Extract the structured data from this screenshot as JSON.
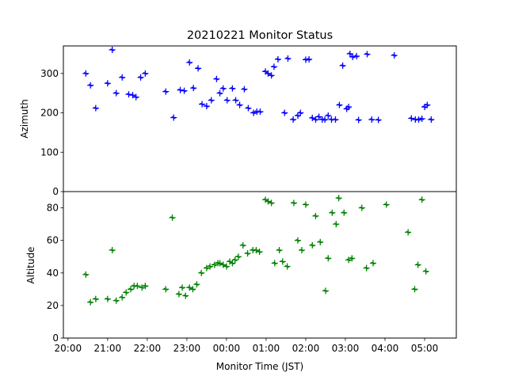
{
  "chart_data": {
    "type": "scatter",
    "title": "20210221 Monitor Status",
    "xlabel": "Monitor Time (JST)",
    "x_ticks": [
      "20:00",
      "21:00",
      "22:00",
      "23:00",
      "00:00",
      "01:00",
      "02:00",
      "03:00",
      "04:00",
      "05:00"
    ],
    "panels": [
      {
        "ylabel": "Azimuth",
        "ylim": [
          0,
          370
        ],
        "y_ticks": [
          0,
          100,
          200,
          300
        ],
        "color": "#0000ff",
        "series": [
          {
            "points": [
              [
                "20:27",
                300
              ],
              [
                "20:34",
                270
              ],
              [
                "20:42",
                212
              ],
              [
                "21:00",
                275
              ],
              [
                "21:07",
                360
              ],
              [
                "21:13",
                250
              ],
              [
                "21:22",
                290
              ],
              [
                "21:32",
                247
              ],
              [
                "21:38",
                245
              ],
              [
                "21:43",
                240
              ],
              [
                "21:50",
                290
              ],
              [
                "21:57",
                300
              ],
              [
                "22:28",
                254
              ],
              [
                "22:40",
                188
              ],
              [
                "22:50",
                258
              ],
              [
                "22:56",
                256
              ],
              [
                "23:04",
                328
              ],
              [
                "23:10",
                263
              ],
              [
                "23:17",
                313
              ],
              [
                "23:23",
                222
              ],
              [
                "23:30",
                217
              ],
              [
                "23:37",
                232
              ],
              [
                "23:45",
                286
              ],
              [
                "23:50",
                250
              ],
              [
                "23:55",
                262
              ],
              [
                "00:01",
                232
              ],
              [
                "00:09",
                262
              ],
              [
                "00:14",
                232
              ],
              [
                "00:20",
                220
              ],
              [
                "00:27",
                260
              ],
              [
                "00:33",
                212
              ],
              [
                "00:41",
                200
              ],
              [
                "00:46",
                203
              ],
              [
                "00:51",
                203
              ],
              [
                "00:59",
                305
              ],
              [
                "01:03",
                300
              ],
              [
                "01:08",
                295
              ],
              [
                "01:12",
                317
              ],
              [
                "01:18",
                336
              ],
              [
                "01:28",
                200
              ],
              [
                "01:33",
                338
              ],
              [
                "01:41",
                183
              ],
              [
                "01:48",
                193
              ],
              [
                "01:52",
                200
              ],
              [
                "02:00",
                335
              ],
              [
                "02:05",
                336
              ],
              [
                "02:10",
                187
              ],
              [
                "02:15",
                183
              ],
              [
                "02:20",
                190
              ],
              [
                "02:25",
                183
              ],
              [
                "02:29",
                183
              ],
              [
                "02:34",
                193
              ],
              [
                "02:39",
                183
              ],
              [
                "02:45",
                183
              ],
              [
                "02:51",
                220
              ],
              [
                "02:56",
                320
              ],
              [
                "03:02",
                210
              ],
              [
                "03:05",
                215
              ],
              [
                "03:07",
                350
              ],
              [
                "03:11",
                342
              ],
              [
                "03:17",
                344
              ],
              [
                "03:20",
                182
              ],
              [
                "03:33",
                349
              ],
              [
                "03:40",
                183
              ],
              [
                "03:50",
                182
              ],
              [
                "04:14",
                346
              ],
              [
                "04:40",
                186
              ],
              [
                "04:46",
                183
              ],
              [
                "04:51",
                183
              ],
              [
                "04:56",
                185
              ],
              [
                "05:00",
                215
              ],
              [
                "05:04",
                220
              ],
              [
                "05:10",
                183
              ]
            ]
          }
        ]
      },
      {
        "ylabel": "Altitude",
        "ylim": [
          0,
          90
        ],
        "y_ticks": [
          0,
          20,
          40,
          60,
          80
        ],
        "color": "#008000",
        "series": [
          {
            "points": [
              [
                "20:27",
                39
              ],
              [
                "20:34",
                22
              ],
              [
                "20:42",
                24
              ],
              [
                "21:00",
                24
              ],
              [
                "21:07",
                54
              ],
              [
                "21:13",
                23
              ],
              [
                "21:22",
                25
              ],
              [
                "21:28",
                28
              ],
              [
                "21:35",
                30
              ],
              [
                "21:40",
                32
              ],
              [
                "21:45",
                32
              ],
              [
                "21:52",
                31
              ],
              [
                "21:57",
                32
              ],
              [
                "22:28",
                30
              ],
              [
                "22:38",
                74
              ],
              [
                "22:48",
                27
              ],
              [
                "22:53",
                31
              ],
              [
                "22:58",
                26
              ],
              [
                "23:04",
                31
              ],
              [
                "23:09",
                30
              ],
              [
                "23:15",
                33
              ],
              [
                "23:22",
                40
              ],
              [
                "23:30",
                43
              ],
              [
                "23:35",
                44
              ],
              [
                "23:42",
                45
              ],
              [
                "23:47",
                46
              ],
              [
                "23:50",
                46
              ],
              [
                "23:55",
                45
              ],
              [
                "00:00",
                44
              ],
              [
                "00:05",
                47
              ],
              [
                "00:09",
                46
              ],
              [
                "00:13",
                48
              ],
              [
                "00:18",
                50
              ],
              [
                "00:25",
                57
              ],
              [
                "00:32",
                52
              ],
              [
                "00:40",
                54
              ],
              [
                "00:45",
                54
              ],
              [
                "00:50",
                53
              ],
              [
                "00:59",
                85
              ],
              [
                "01:03",
                84
              ],
              [
                "01:08",
                83
              ],
              [
                "01:13",
                46
              ],
              [
                "01:20",
                54
              ],
              [
                "01:25",
                47
              ],
              [
                "01:32",
                44
              ],
              [
                "01:42",
                83
              ],
              [
                "01:48",
                60
              ],
              [
                "01:54",
                54
              ],
              [
                "02:00",
                82
              ],
              [
                "02:10",
                57
              ],
              [
                "02:15",
                75
              ],
              [
                "02:22",
                59
              ],
              [
                "02:30",
                29
              ],
              [
                "02:34",
                49
              ],
              [
                "02:40",
                77
              ],
              [
                "02:46",
                70
              ],
              [
                "02:50",
                86
              ],
              [
                "02:58",
                77
              ],
              [
                "03:05",
                48
              ],
              [
                "03:10",
                49
              ],
              [
                "03:25",
                80
              ],
              [
                "03:32",
                43
              ],
              [
                "03:42",
                46
              ],
              [
                "04:02",
                82
              ],
              [
                "04:35",
                65
              ],
              [
                "04:45",
                30
              ],
              [
                "04:50",
                45
              ],
              [
                "04:56",
                85
              ],
              [
                "05:02",
                41
              ]
            ]
          }
        ]
      }
    ]
  }
}
